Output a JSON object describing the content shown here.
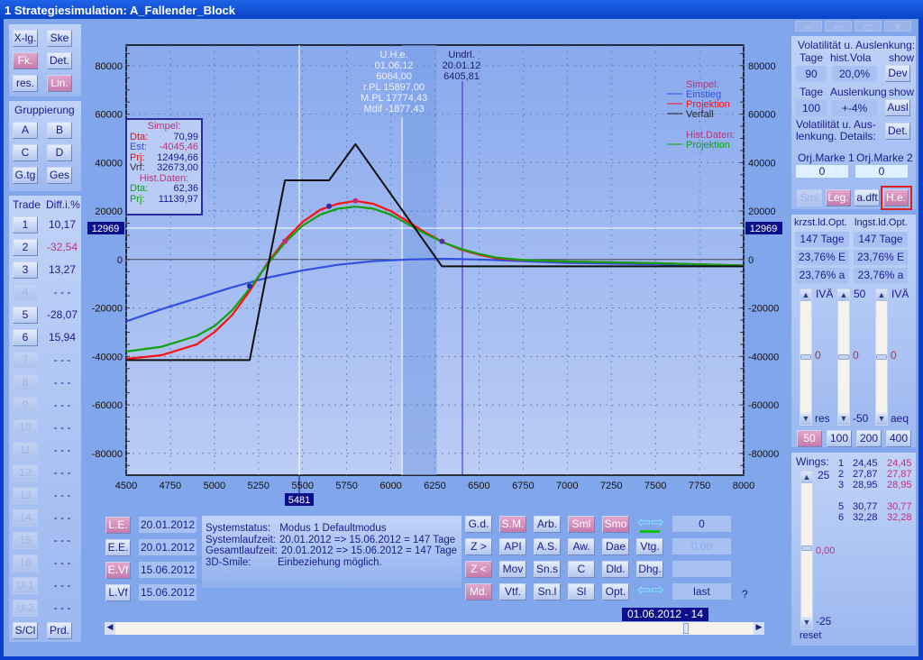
{
  "window": {
    "title": "1  Strategiesimulation:   A_Fallender_Block",
    "controls": [
      "—",
      "▭",
      "▢",
      "X"
    ]
  },
  "left": {
    "top_buttons": [
      {
        "label": "X-lg.",
        "on": false
      },
      {
        "label": "Ske",
        "on": false
      },
      {
        "label": "Fk.",
        "on": true
      },
      {
        "label": "Det.",
        "on": false
      },
      {
        "label": "res.",
        "on": false
      },
      {
        "label": "Lin.",
        "on": true
      }
    ],
    "group_title": "Gruppierung",
    "group_buttons": [
      "A",
      "B",
      "C",
      "D",
      "G.tg",
      "Ges"
    ],
    "trade_header": "Trade",
    "diff_header": "Diff.i.%",
    "trades": [
      {
        "label": "1",
        "value": "10,17",
        "enabled": true,
        "negative": false
      },
      {
        "label": "2",
        "value": "-32,54",
        "enabled": true,
        "negative": true
      },
      {
        "label": "3",
        "value": "13,27",
        "enabled": true,
        "negative": false
      },
      {
        "label": "4",
        "value": "- - -",
        "enabled": false,
        "negative": false
      },
      {
        "label": "5",
        "value": "-28,07",
        "enabled": true,
        "negative": false
      },
      {
        "label": "6",
        "value": "15,94",
        "enabled": true,
        "negative": false
      },
      {
        "label": "7",
        "value": "- - -",
        "enabled": false
      },
      {
        "label": "8",
        "value": "- - -",
        "enabled": false
      },
      {
        "label": "9",
        "value": "- - -",
        "enabled": false
      },
      {
        "label": "10",
        "value": "- - -",
        "enabled": false
      },
      {
        "label": "11",
        "value": "- - -",
        "enabled": false
      },
      {
        "label": "12",
        "value": "- - -",
        "enabled": false
      },
      {
        "label": "13",
        "value": "- - -",
        "enabled": false
      },
      {
        "label": "14",
        "value": "- - -",
        "enabled": false
      },
      {
        "label": "15",
        "value": "- - -",
        "enabled": false
      },
      {
        "label": "16",
        "value": "- - -",
        "enabled": false
      },
      {
        "label": "U-1",
        "value": "- - -",
        "enabled": false
      },
      {
        "label": "U-2",
        "value": "- - -",
        "enabled": false
      }
    ],
    "sc_button": "S/Cl",
    "prd_button": "Prd."
  },
  "infobox": {
    "simpel_title": "Simpel:",
    "rows": [
      {
        "k": "Dta:",
        "v": "70,99",
        "kc": "#e01010"
      },
      {
        "k": "Est:",
        "v": "-4045,46",
        "kc": "#3050e0",
        "vc": "#c0307a"
      },
      {
        "k": "Prj:",
        "v": "12494,66",
        "kc": "#e01010"
      },
      {
        "k": "Vrf:",
        "v": "32673,00",
        "kc": "#303030"
      }
    ],
    "hist_title": "Hist.Daten:",
    "hist_rows": [
      {
        "k": "Dta:",
        "v": "62,36",
        "kc": "#10a010"
      },
      {
        "k": "Prj:",
        "v": "11139,97",
        "kc": "#10a010"
      }
    ]
  },
  "annotations": {
    "uhe": [
      "U.H.e.",
      "01.06.12",
      "6064,00",
      "r.PL 15897,00",
      "M.PL 17774,43",
      "Mdif -1877,43"
    ],
    "undrl": [
      "Undrl.",
      "20.01.12",
      "6405,81"
    ],
    "hline_label": "12969",
    "vline_label": "5481"
  },
  "chart_data": {
    "type": "line",
    "xlim": [
      4500,
      8000
    ],
    "ylim": [
      -89000,
      88500
    ],
    "xticks": [
      4500,
      4750,
      5000,
      5250,
      5500,
      5750,
      6000,
      6250,
      6500,
      6750,
      7000,
      7250,
      7500,
      7750,
      8000
    ],
    "yticks": [
      -80000,
      -60000,
      -40000,
      -20000,
      0,
      20000,
      40000,
      60000,
      80000
    ],
    "grid": true,
    "legend_position": "top-right",
    "legend": [
      {
        "group": "Simpel:",
        "items": [
          {
            "name": "Einstieg",
            "color": "#3050e0"
          },
          {
            "name": "Projektion",
            "color": "#ff1010"
          },
          {
            "name": "Verfall",
            "color": "#202020"
          }
        ]
      },
      {
        "group": "Hist.Daten:",
        "items": [
          {
            "name": "Projektion",
            "color": "#10a010"
          }
        ]
      }
    ],
    "series": [
      {
        "name": "Einstieg",
        "color": "#3050e0",
        "points": [
          [
            4500,
            -25500
          ],
          [
            4700,
            -20500
          ],
          [
            4900,
            -16000
          ],
          [
            5100,
            -11500
          ],
          [
            5300,
            -7500
          ],
          [
            5500,
            -4500
          ],
          [
            5700,
            -2200
          ],
          [
            5900,
            -700
          ],
          [
            6100,
            0
          ],
          [
            6300,
            300
          ],
          [
            6500,
            0
          ],
          [
            6750,
            -700
          ],
          [
            7000,
            -1400
          ],
          [
            7500,
            -2000
          ],
          [
            8000,
            -2600
          ]
        ]
      },
      {
        "name": "Projektion",
        "color": "#ff1010",
        "points": [
          [
            4500,
            -41000
          ],
          [
            4700,
            -39500
          ],
          [
            4900,
            -35000
          ],
          [
            5000,
            -30000
          ],
          [
            5100,
            -23000
          ],
          [
            5200,
            -13000
          ],
          [
            5300,
            -1500
          ],
          [
            5400,
            8000
          ],
          [
            5500,
            15500
          ],
          [
            5600,
            20500
          ],
          [
            5700,
            23000
          ],
          [
            5800,
            24200
          ],
          [
            5900,
            23000
          ],
          [
            6000,
            20000
          ],
          [
            6100,
            15500
          ],
          [
            6200,
            11000
          ],
          [
            6300,
            7000
          ],
          [
            6400,
            4000
          ],
          [
            6500,
            2000
          ],
          [
            6600,
            500
          ],
          [
            6750,
            -300
          ],
          [
            7000,
            -800
          ],
          [
            7500,
            -1500
          ],
          [
            8000,
            -2500
          ]
        ]
      },
      {
        "name": "Hist.Daten Projektion",
        "color": "#10a010",
        "points": [
          [
            4500,
            -38000
          ],
          [
            4700,
            -36000
          ],
          [
            4900,
            -31500
          ],
          [
            5000,
            -27500
          ],
          [
            5100,
            -21000
          ],
          [
            5200,
            -12000
          ],
          [
            5300,
            -2000
          ],
          [
            5400,
            7000
          ],
          [
            5500,
            14000
          ],
          [
            5600,
            18500
          ],
          [
            5700,
            21000
          ],
          [
            5800,
            21800
          ],
          [
            5900,
            21000
          ],
          [
            6000,
            18500
          ],
          [
            6100,
            14500
          ],
          [
            6200,
            10500
          ],
          [
            6300,
            7000
          ],
          [
            6400,
            4300
          ],
          [
            6500,
            2300
          ],
          [
            6600,
            800
          ],
          [
            6750,
            -200
          ],
          [
            7000,
            -800
          ],
          [
            7500,
            -1500
          ],
          [
            8000,
            -2500
          ]
        ]
      },
      {
        "name": "Verfall",
        "color": "#101010",
        "points": [
          [
            4500,
            -41500
          ],
          [
            5200,
            -41500
          ],
          [
            5400,
            32700
          ],
          [
            5650,
            32700
          ],
          [
            5800,
            47600
          ],
          [
            6290,
            -2800
          ],
          [
            8000,
            -2800
          ]
        ]
      }
    ],
    "markers": [
      {
        "x": 5200,
        "y": -11000,
        "color": "#2a2aa8"
      },
      {
        "x": 5400,
        "y": 7500,
        "color": "#c0307a"
      },
      {
        "x": 5650,
        "y": 22000,
        "color": "#2a2aa8"
      },
      {
        "x": 5800,
        "y": 24200,
        "color": "#c0307a"
      },
      {
        "x": 6290,
        "y": 7500,
        "color": "#602a9a"
      }
    ],
    "hline": 12969,
    "vline_white": 5481,
    "band": [
      6064,
      6260
    ],
    "vline_undrl": 6405.81
  },
  "bottom": {
    "date_rows": [
      {
        "btn": "L.E.",
        "on": true,
        "date": "20.01.2012"
      },
      {
        "btn": "E.E.",
        "on": false,
        "date": "20.01.2012"
      },
      {
        "btn": "E.Vf",
        "on": true,
        "date": "15.06.2012"
      },
      {
        "btn": "L.Vf",
        "on": false,
        "date": "15.06.2012"
      }
    ],
    "status": [
      [
        "Systemstatus:",
        "Modus 1  Defaultmodus"
      ],
      [
        "Systemlaufzeit:",
        "20.01.2012 => 15.06.2012 = 147 Tage"
      ],
      [
        "Gesamtlaufzeit:",
        "20.01.2012 => 15.06.2012 = 147 Tage"
      ],
      [
        "3D-Smile:",
        "Einbeziehung möglich."
      ]
    ],
    "grid": [
      [
        {
          "l": "G.d."
        },
        {
          "l": "S.M.",
          "on": true
        },
        {
          "l": "Arb."
        },
        {
          "l": "Sml",
          "on": true
        },
        {
          "l": "Smo",
          "on": true
        }
      ],
      [
        {
          "l": "Z >"
        },
        {
          "l": "API"
        },
        {
          "l": "A.S."
        },
        {
          "l": "Aw."
        },
        {
          "l": "Dae"
        },
        {
          "l": "Vtg."
        }
      ],
      [
        {
          "l": "Z <",
          "on": true
        },
        {
          "l": "Mov"
        },
        {
          "l": "Sn.s"
        },
        {
          "l": "C"
        },
        {
          "l": "Dld."
        },
        {
          "l": "Dhg."
        }
      ],
      [
        {
          "l": "Md.",
          "on": true
        },
        {
          "l": "Vtf."
        },
        {
          "l": "Sn.l"
        },
        {
          "l": "Sl"
        },
        {
          "l": "Opt."
        }
      ]
    ],
    "values": [
      "0",
      "0,00",
      "- - -",
      "last"
    ],
    "help": "?",
    "date_label": "01.06.2012 - 14",
    "slider_position": 0.9
  },
  "right": {
    "vola_title": "Volatilität  u. Auslenkung:",
    "h1": [
      "Tage",
      "hist.Vola",
      "show"
    ],
    "r1": [
      "90",
      "20,0%"
    ],
    "dev": "Dev",
    "h2": [
      "Tage",
      "Auslenkung",
      "show"
    ],
    "r2": [
      "100",
      "+-4%"
    ],
    "ausl": "Ausl",
    "details_text": "Volatilität u. Aus-\nlenkung. Details:",
    "det": "Det.",
    "marke1": "Orj.Marke 1",
    "marke2": "Orj.Marke 2",
    "marke1_val": "0",
    "marke2_val": "0",
    "mode_buttons": [
      {
        "l": "Sml",
        "state": "dis"
      },
      {
        "l": "Leg.",
        "state": "on"
      },
      {
        "l": "a.dft",
        "state": ""
      },
      {
        "l": "H.e.",
        "state": "on"
      }
    ],
    "opt_headers": [
      "krzst.ld.Opt.",
      "lngst.ld.Opt."
    ],
    "opt_rows": [
      [
        "147 Tage",
        "147 Tage"
      ],
      [
        "23,76% E",
        "23,76% E"
      ],
      [
        "23,76% a",
        "23,76% a"
      ]
    ],
    "sliders": [
      {
        "top": "IVÄ",
        "mid": "0",
        "bottom": "res"
      },
      {
        "top": "50",
        "mid": "0",
        "bottom": "-50"
      },
      {
        "top": "IVÄ",
        "mid": "0",
        "bottom": "aeq"
      }
    ],
    "scale_buttons": [
      {
        "l": "50",
        "on": true
      },
      {
        "l": "100"
      },
      {
        "l": "200"
      },
      {
        "l": "400"
      }
    ],
    "wings_title": "Wings:",
    "wings_top": "25",
    "wings_mid": "0,00",
    "wings_bottom": "-25",
    "reset": "reset",
    "wings": [
      [
        "1",
        "24,45",
        "24,45"
      ],
      [
        "2",
        "27,87",
        "27,87"
      ],
      [
        "3",
        "28,95",
        "28,95"
      ],
      [
        "",
        "",
        " "
      ],
      [
        "5",
        "30,77",
        "30,77"
      ],
      [
        "6",
        "32,28",
        "32,28"
      ]
    ]
  }
}
